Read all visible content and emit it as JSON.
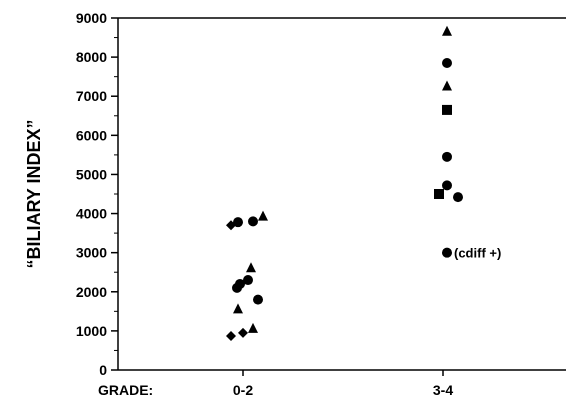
{
  "chart_data": {
    "type": "scatter",
    "title": "",
    "ylabel": "“BILIARY INDEX”",
    "xlabel": "GRADE:",
    "categories": [
      "0-2",
      "3-4"
    ],
    "ylim": [
      0,
      9000
    ],
    "yticks": [
      "0",
      "1000",
      "2000",
      "3000",
      "4000",
      "5000",
      "6000",
      "7000",
      "8000",
      "9000"
    ],
    "grid": false,
    "legend": "none",
    "points": [
      {
        "category": "0-2",
        "offset": -0.12,
        "y": 3700,
        "marker": "diamond"
      },
      {
        "category": "0-2",
        "offset": -0.05,
        "y": 3780,
        "marker": "circle"
      },
      {
        "category": "0-2",
        "offset": 0.1,
        "y": 3800,
        "marker": "circle"
      },
      {
        "category": "0-2",
        "offset": 0.2,
        "y": 3920,
        "marker": "triangle"
      },
      {
        "category": "0-2",
        "offset": 0.08,
        "y": 2600,
        "marker": "triangle"
      },
      {
        "category": "0-2",
        "offset": 0.05,
        "y": 2300,
        "marker": "circle"
      },
      {
        "category": "0-2",
        "offset": -0.03,
        "y": 2200,
        "marker": "circle"
      },
      {
        "category": "0-2",
        "offset": -0.06,
        "y": 2100,
        "marker": "circle"
      },
      {
        "category": "0-2",
        "offset": 0.15,
        "y": 1800,
        "marker": "circle"
      },
      {
        "category": "0-2",
        "offset": -0.05,
        "y": 1550,
        "marker": "triangle"
      },
      {
        "category": "0-2",
        "offset": -0.12,
        "y": 870,
        "marker": "diamond"
      },
      {
        "category": "0-2",
        "offset": 0.0,
        "y": 950,
        "marker": "diamond"
      },
      {
        "category": "0-2",
        "offset": 0.1,
        "y": 1050,
        "marker": "triangle"
      },
      {
        "category": "3-4",
        "offset": 0.04,
        "y": 8650,
        "marker": "triangle"
      },
      {
        "category": "3-4",
        "offset": 0.04,
        "y": 7850,
        "marker": "circle"
      },
      {
        "category": "3-4",
        "offset": 0.04,
        "y": 7250,
        "marker": "triangle"
      },
      {
        "category": "3-4",
        "offset": 0.04,
        "y": 6650,
        "marker": "square"
      },
      {
        "category": "3-4",
        "offset": 0.04,
        "y": 5450,
        "marker": "circle"
      },
      {
        "category": "3-4",
        "offset": 0.04,
        "y": 4720,
        "marker": "circle"
      },
      {
        "category": "3-4",
        "offset": -0.04,
        "y": 4500,
        "marker": "square"
      },
      {
        "category": "3-4",
        "offset": 0.15,
        "y": 4420,
        "marker": "circle"
      },
      {
        "category": "3-4",
        "offset": 0.04,
        "y": 3000,
        "marker": "circle",
        "label": "(cdiff +)"
      }
    ]
  }
}
